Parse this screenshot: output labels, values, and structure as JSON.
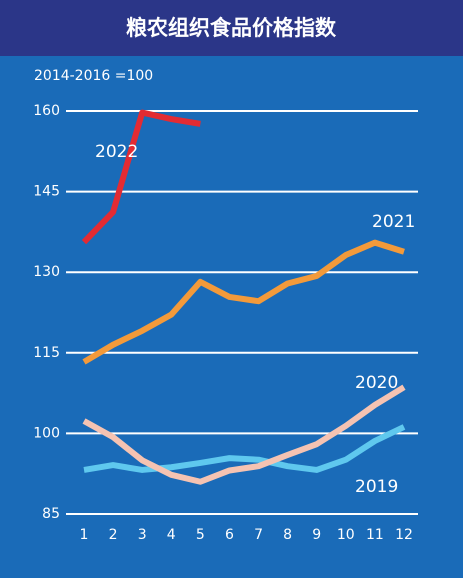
{
  "chart_data": {
    "type": "line",
    "title": "粮农组织食品价格指数",
    "subtitle": "2014-2016 =100",
    "categories": [
      "1",
      "2",
      "3",
      "4",
      "5",
      "6",
      "7",
      "8",
      "9",
      "10",
      "11",
      "12"
    ],
    "ylim": [
      85,
      160
    ],
    "yticks": [
      85,
      100,
      115,
      130,
      145,
      160
    ],
    "grid": true,
    "series": [
      {
        "name": "2022",
        "color": "#e32b33",
        "values": [
          135.6,
          141.2,
          159.7,
          158.5,
          157.6,
          null,
          null,
          null,
          null,
          null,
          null,
          null
        ]
      },
      {
        "name": "2021",
        "color": "#f39a3a",
        "values": [
          113.3,
          116.5,
          119.1,
          122.1,
          128.2,
          125.4,
          124.6,
          127.9,
          129.3,
          133.2,
          135.5,
          133.8
        ]
      },
      {
        "name": "2020",
        "color": "#f5c3b2",
        "values": [
          102.3,
          99.3,
          95.0,
          92.3,
          91.0,
          93.1,
          93.9,
          96.0,
          98.0,
          101.4,
          105.3,
          108.6
        ]
      },
      {
        "name": "2019",
        "color": "#5fc8ee",
        "values": [
          93.2,
          94.1,
          93.2,
          93.7,
          94.5,
          95.4,
          95.1,
          93.9,
          93.2,
          95.1,
          98.6,
          101.2
        ]
      }
    ]
  }
}
